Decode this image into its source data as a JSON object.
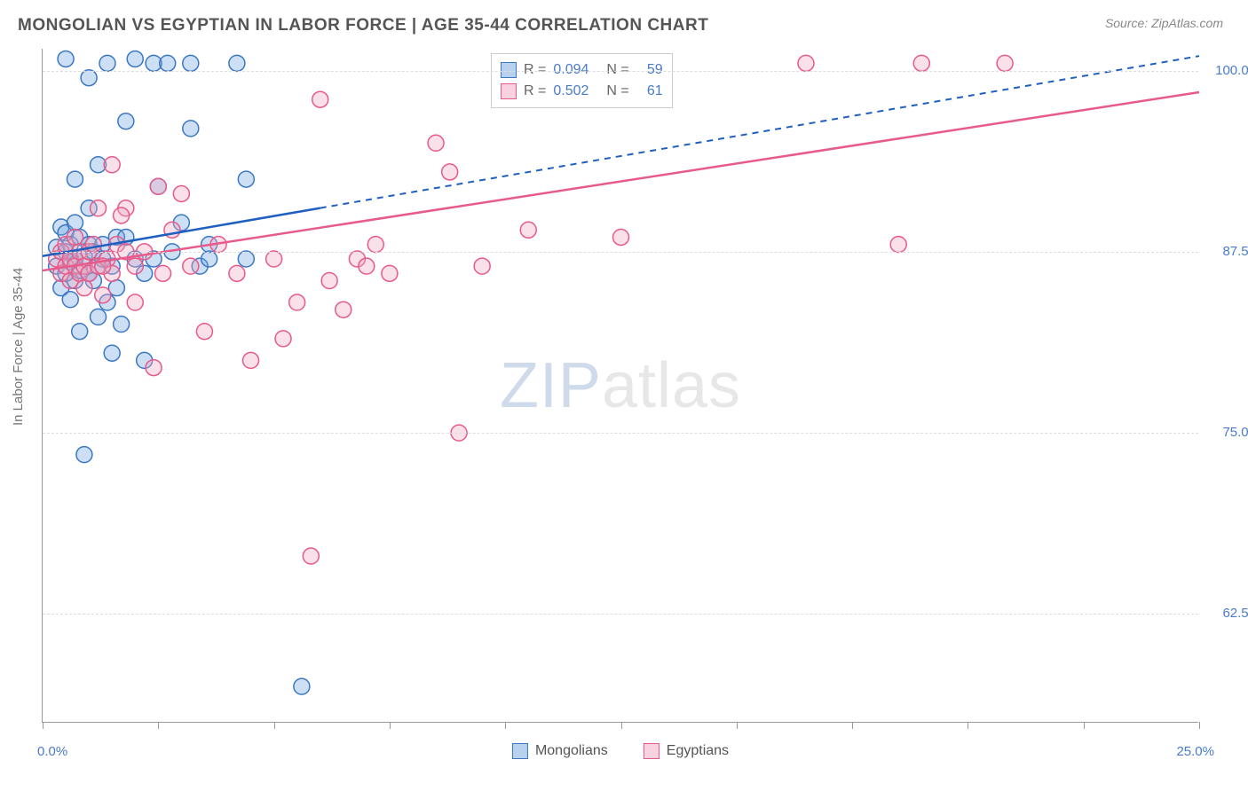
{
  "title": "MONGOLIAN VS EGYPTIAN IN LABOR FORCE | AGE 35-44 CORRELATION CHART",
  "source": "Source: ZipAtlas.com",
  "y_axis_label": "In Labor Force | Age 35-44",
  "watermark_a": "ZIP",
  "watermark_b": "atlas",
  "chart": {
    "type": "scatter",
    "background_color": "#ffffff",
    "grid_color": "#dddddd",
    "axis_color": "#999999",
    "tick_label_color": "#4a7bc8",
    "xlim": [
      0.0,
      25.0
    ],
    "ylim": [
      55.0,
      101.5
    ],
    "y_ticks": [
      62.5,
      75.0,
      87.5,
      100.0
    ],
    "y_tick_labels": [
      "62.5%",
      "75.0%",
      "87.5%",
      "100.0%"
    ],
    "x_tick_positions": [
      0,
      2.5,
      5,
      7.5,
      10,
      12.5,
      15,
      17.5,
      20,
      22.5,
      25
    ],
    "x_min_label": "0.0%",
    "x_max_label": "25.0%",
    "marker_radius": 9,
    "marker_fill_opacity": 0.35,
    "marker_stroke_width": 1.5,
    "trend_line_width": 2.5,
    "series": [
      {
        "name": "Mongolians",
        "fill_color": "#6fa3e0",
        "stroke_color": "#3b78c4",
        "line_color": "#1f5fbf",
        "R": "0.094",
        "N": "59",
        "trend_solid_end_x": 6.0,
        "trend_y_at_xmin": 87.2,
        "trend_y_at_xmax": 101.0,
        "points": [
          [
            0.3,
            86.5
          ],
          [
            0.3,
            87.8
          ],
          [
            0.4,
            89.2
          ],
          [
            0.4,
            85.0
          ],
          [
            0.5,
            86.0
          ],
          [
            0.5,
            87.5
          ],
          [
            0.5,
            88.8
          ],
          [
            0.5,
            100.8
          ],
          [
            0.6,
            84.2
          ],
          [
            0.6,
            86.8
          ],
          [
            0.6,
            88.0
          ],
          [
            0.7,
            85.5
          ],
          [
            0.7,
            87.0
          ],
          [
            0.7,
            89.5
          ],
          [
            0.7,
            92.5
          ],
          [
            0.8,
            86.2
          ],
          [
            0.8,
            88.5
          ],
          [
            0.8,
            82.0
          ],
          [
            0.9,
            87.2
          ],
          [
            0.9,
            73.5
          ],
          [
            1.0,
            86.0
          ],
          [
            1.0,
            88.0
          ],
          [
            1.0,
            90.5
          ],
          [
            1.0,
            99.5
          ],
          [
            1.1,
            85.5
          ],
          [
            1.1,
            87.5
          ],
          [
            1.2,
            86.5
          ],
          [
            1.2,
            83.0
          ],
          [
            1.2,
            93.5
          ],
          [
            1.3,
            88.0
          ],
          [
            1.3,
            87.0
          ],
          [
            1.4,
            100.5
          ],
          [
            1.5,
            86.5
          ],
          [
            1.5,
            80.5
          ],
          [
            1.6,
            88.5
          ],
          [
            1.6,
            85.0
          ],
          [
            1.8,
            96.5
          ],
          [
            1.8,
            88.5
          ],
          [
            2.0,
            100.8
          ],
          [
            2.0,
            87.0
          ],
          [
            2.2,
            86.0
          ],
          [
            2.2,
            80.0
          ],
          [
            2.4,
            100.5
          ],
          [
            2.4,
            87.0
          ],
          [
            2.5,
            92.0
          ],
          [
            2.7,
            100.5
          ],
          [
            2.8,
            87.5
          ],
          [
            3.0,
            89.5
          ],
          [
            3.2,
            100.5
          ],
          [
            3.2,
            96.0
          ],
          [
            3.4,
            86.5
          ],
          [
            3.6,
            87.0
          ],
          [
            3.6,
            88.0
          ],
          [
            4.2,
            100.5
          ],
          [
            4.4,
            92.5
          ],
          [
            4.4,
            87.0
          ],
          [
            5.6,
            57.5
          ],
          [
            1.7,
            82.5
          ],
          [
            1.4,
            84.0
          ]
        ]
      },
      {
        "name": "Egyptians",
        "fill_color": "#f2a5be",
        "stroke_color": "#e85a8a",
        "line_color": "#e85a8a",
        "R": "0.502",
        "N": "61",
        "trend_solid_end_x": 25.0,
        "trend_y_at_xmin": 86.2,
        "trend_y_at_xmax": 98.5,
        "points": [
          [
            0.3,
            87.0
          ],
          [
            0.4,
            86.0
          ],
          [
            0.4,
            87.5
          ],
          [
            0.5,
            86.5
          ],
          [
            0.5,
            88.0
          ],
          [
            0.6,
            85.5
          ],
          [
            0.6,
            87.0
          ],
          [
            0.7,
            86.5
          ],
          [
            0.7,
            88.5
          ],
          [
            0.8,
            86.0
          ],
          [
            0.8,
            87.5
          ],
          [
            0.9,
            86.5
          ],
          [
            0.9,
            85.0
          ],
          [
            1.0,
            86.0
          ],
          [
            1.0,
            87.5
          ],
          [
            1.1,
            88.0
          ],
          [
            1.2,
            86.5
          ],
          [
            1.2,
            90.5
          ],
          [
            1.3,
            84.5
          ],
          [
            1.4,
            87.0
          ],
          [
            1.5,
            86.0
          ],
          [
            1.5,
            93.5
          ],
          [
            1.6,
            88.0
          ],
          [
            1.8,
            87.5
          ],
          [
            1.8,
            90.5
          ],
          [
            2.0,
            86.5
          ],
          [
            2.0,
            84.0
          ],
          [
            2.2,
            87.5
          ],
          [
            2.4,
            79.5
          ],
          [
            2.5,
            92.0
          ],
          [
            2.8,
            89.0
          ],
          [
            3.0,
            91.5
          ],
          [
            3.2,
            86.5
          ],
          [
            3.5,
            82.0
          ],
          [
            3.8,
            88.0
          ],
          [
            4.2,
            86.0
          ],
          [
            4.5,
            80.0
          ],
          [
            5.0,
            87.0
          ],
          [
            5.2,
            81.5
          ],
          [
            5.5,
            84.0
          ],
          [
            5.8,
            66.5
          ],
          [
            6.0,
            98.0
          ],
          [
            6.2,
            85.5
          ],
          [
            6.5,
            83.5
          ],
          [
            6.8,
            87.0
          ],
          [
            7.0,
            86.5
          ],
          [
            7.2,
            88.0
          ],
          [
            7.5,
            86.0
          ],
          [
            8.5,
            95.0
          ],
          [
            8.8,
            93.0
          ],
          [
            9.0,
            75.0
          ],
          [
            9.5,
            86.5
          ],
          [
            10.5,
            89.0
          ],
          [
            12.5,
            88.5
          ],
          [
            16.5,
            100.5
          ],
          [
            18.5,
            88.0
          ],
          [
            19.0,
            100.5
          ],
          [
            20.8,
            100.5
          ],
          [
            1.3,
            86.5
          ],
          [
            1.7,
            90.0
          ],
          [
            2.6,
            86.0
          ]
        ]
      }
    ]
  },
  "legend_stats": {
    "r_label": "R =",
    "n_label": "N =",
    "value_color": "#4a7bc8",
    "text_color": "#666666"
  }
}
